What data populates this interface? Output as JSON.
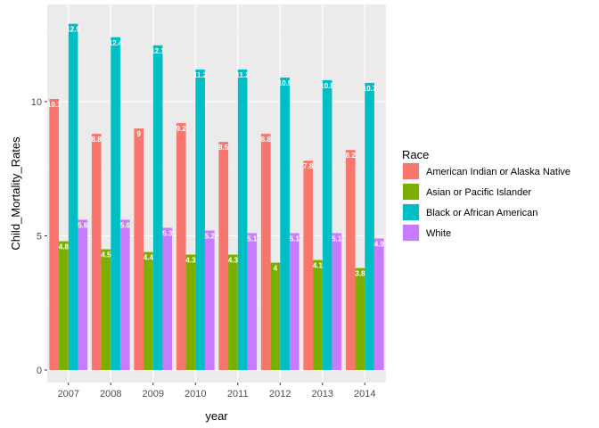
{
  "chart_data": {
    "type": "bar",
    "xlabel": "year",
    "ylabel": "Child_Mortality_Rates",
    "categories": [
      "2007",
      "2008",
      "2009",
      "2010",
      "2011",
      "2012",
      "2013",
      "2014"
    ],
    "ylim": [
      0,
      13
    ],
    "yticks": [
      0,
      5,
      10
    ],
    "grid": true,
    "legend": {
      "title": "Race",
      "position": "right"
    },
    "series": [
      {
        "name": "American Indian or Alaska Native",
        "color": "#F8766D",
        "values": [
          10.1,
          8.8,
          9,
          9.2,
          8.5,
          8.8,
          7.8,
          8.2
        ]
      },
      {
        "name": "Asian or Pacific Islander",
        "color": "#7CAE00",
        "values": [
          4.8,
          4.5,
          4.4,
          4.3,
          4.3,
          4,
          4.1,
          3.8
        ]
      },
      {
        "name": "Black or African American",
        "color": "#00BFC4",
        "values": [
          12.9,
          12.4,
          12.1,
          11.2,
          11.2,
          10.9,
          10.8,
          10.7
        ]
      },
      {
        "name": "White",
        "color": "#C77CFF",
        "values": [
          5.6,
          5.6,
          5.3,
          5.2,
          5.1,
          5.1,
          5.1,
          4.9
        ]
      }
    ],
    "data_labels": [
      [
        "10.1",
        "8.8",
        "9",
        "9.2",
        "8.5",
        "8.8",
        "7.8",
        "8.2"
      ],
      [
        "4.8",
        "4.5",
        "4.4",
        "4.3",
        "4.3",
        "4",
        "4.1",
        "3.8"
      ],
      [
        "12.9",
        "12.4",
        "12.1",
        "11.2",
        "11.2",
        "10.9",
        "10.8",
        "10.7"
      ],
      [
        "5.6",
        "5.6",
        "5.3",
        "5.2",
        "5.1",
        "5.1",
        "5.1",
        "4.9"
      ]
    ]
  }
}
